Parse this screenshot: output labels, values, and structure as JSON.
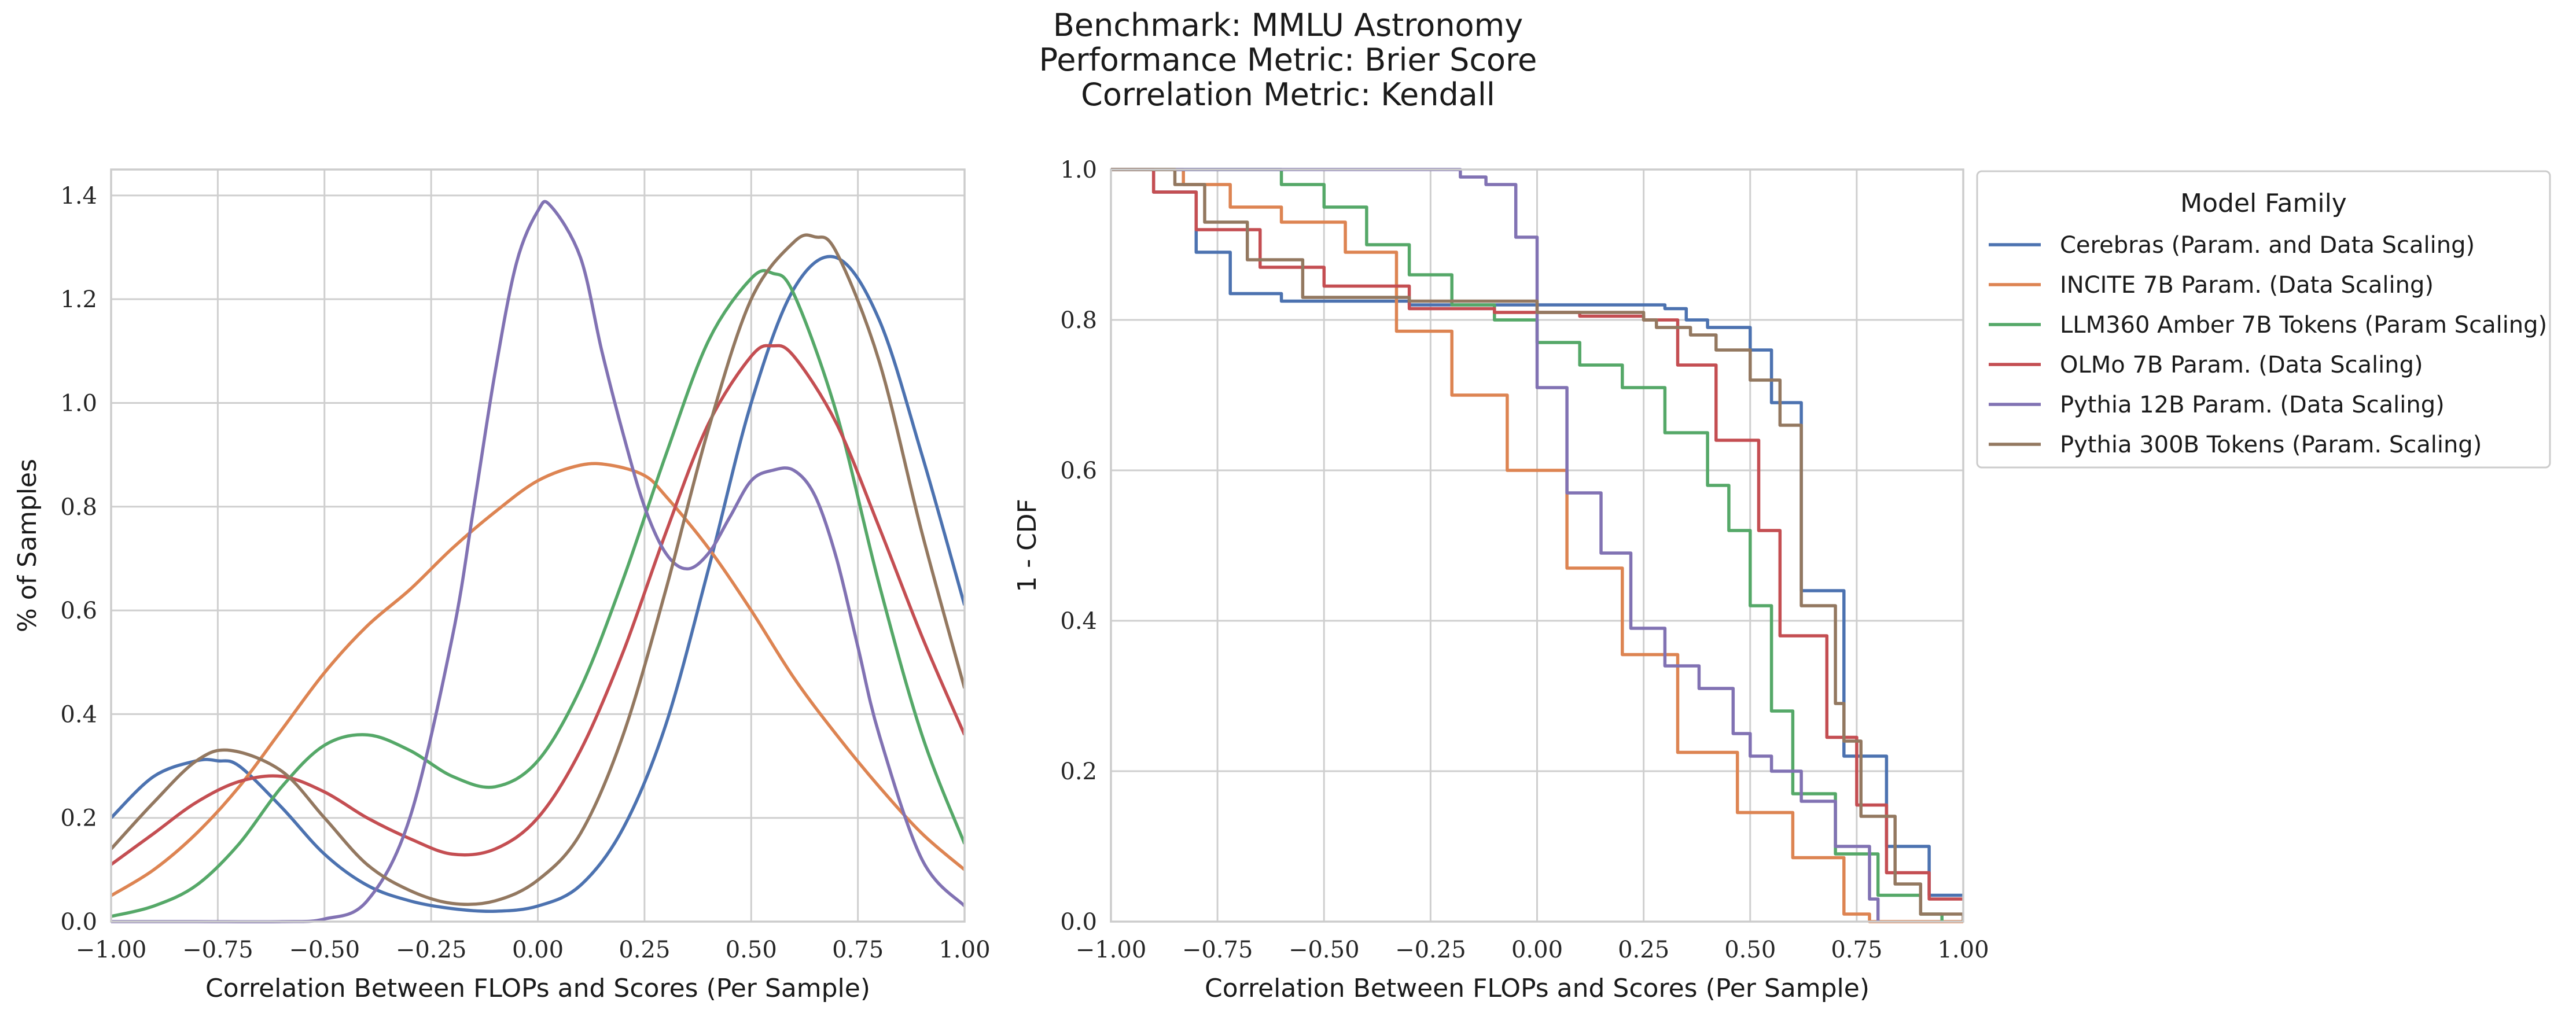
{
  "header": {
    "line1": "Benchmark: MMLU Astronomy",
    "line2": "Performance Metric: Brier Score",
    "line3": "Correlation Metric: Kendall"
  },
  "legend": {
    "title": "Model Family"
  },
  "chart_data": [
    {
      "type": "line",
      "subtype": "kde",
      "xlabel": "Correlation Between FLOPs and Scores (Per Sample)",
      "ylabel": "% of Samples",
      "xlim": [
        -1.0,
        1.0
      ],
      "ylim": [
        0.0,
        1.45
      ],
      "xticks": [
        -1.0,
        -0.75,
        -0.5,
        -0.25,
        0.0,
        0.25,
        0.5,
        0.75,
        1.0
      ],
      "xtick_labels": [
        "−1.00",
        "−0.75",
        "−0.50",
        "−0.25",
        "0.00",
        "0.25",
        "0.50",
        "0.75",
        "1.00"
      ],
      "yticks": [
        0.0,
        0.2,
        0.4,
        0.6,
        0.8,
        1.0,
        1.2,
        1.4
      ],
      "ytick_labels": [
        "0.0",
        "0.2",
        "0.4",
        "0.6",
        "0.8",
        "1.0",
        "1.2",
        "1.4"
      ],
      "grid": true,
      "series": [
        {
          "name": "Cerebras (Param. and Data Scaling)",
          "color": "#4c72b0",
          "x": [
            -1.0,
            -0.9,
            -0.8,
            -0.75,
            -0.7,
            -0.6,
            -0.5,
            -0.4,
            -0.3,
            -0.2,
            -0.1,
            0.0,
            0.1,
            0.2,
            0.3,
            0.4,
            0.5,
            0.6,
            0.7,
            0.8,
            0.9,
            1.0
          ],
          "y": [
            0.2,
            0.28,
            0.31,
            0.31,
            0.3,
            0.22,
            0.13,
            0.07,
            0.04,
            0.025,
            0.02,
            0.03,
            0.07,
            0.18,
            0.38,
            0.68,
            1.0,
            1.22,
            1.28,
            1.16,
            0.9,
            0.61
          ]
        },
        {
          "name": "INCITE 7B Param. (Data Scaling)",
          "color": "#dd8452",
          "x": [
            -1.0,
            -0.9,
            -0.8,
            -0.7,
            -0.6,
            -0.5,
            -0.4,
            -0.3,
            -0.2,
            -0.1,
            0.0,
            0.1,
            0.17,
            0.25,
            0.3,
            0.4,
            0.5,
            0.6,
            0.7,
            0.8,
            0.9,
            1.0
          ],
          "y": [
            0.05,
            0.1,
            0.17,
            0.26,
            0.37,
            0.48,
            0.57,
            0.64,
            0.72,
            0.79,
            0.85,
            0.88,
            0.88,
            0.86,
            0.82,
            0.72,
            0.6,
            0.47,
            0.36,
            0.26,
            0.17,
            0.1
          ]
        },
        {
          "name": "LLM360 Amber 7B Tokens (Param Scaling)",
          "color": "#55a868",
          "x": [
            -1.0,
            -0.9,
            -0.8,
            -0.7,
            -0.6,
            -0.5,
            -0.4,
            -0.3,
            -0.2,
            -0.1,
            0.0,
            0.1,
            0.2,
            0.3,
            0.4,
            0.5,
            0.55,
            0.6,
            0.7,
            0.8,
            0.9,
            1.0
          ],
          "y": [
            0.01,
            0.03,
            0.07,
            0.15,
            0.26,
            0.34,
            0.36,
            0.33,
            0.28,
            0.26,
            0.31,
            0.45,
            0.66,
            0.9,
            1.12,
            1.24,
            1.25,
            1.21,
            0.98,
            0.65,
            0.36,
            0.15
          ]
        },
        {
          "name": "OLMo 7B Param. (Data Scaling)",
          "color": "#c44e52",
          "x": [
            -1.0,
            -0.9,
            -0.8,
            -0.7,
            -0.6,
            -0.5,
            -0.4,
            -0.3,
            -0.2,
            -0.1,
            0.0,
            0.1,
            0.2,
            0.3,
            0.4,
            0.5,
            0.55,
            0.6,
            0.7,
            0.8,
            0.9,
            1.0
          ],
          "y": [
            0.11,
            0.17,
            0.23,
            0.27,
            0.28,
            0.25,
            0.2,
            0.16,
            0.13,
            0.14,
            0.2,
            0.33,
            0.52,
            0.75,
            0.96,
            1.09,
            1.11,
            1.09,
            0.96,
            0.76,
            0.55,
            0.36
          ]
        },
        {
          "name": "Pythia 12B Param. (Data Scaling)",
          "color": "#8172b3",
          "x": [
            -1.0,
            -0.8,
            -0.6,
            -0.5,
            -0.4,
            -0.3,
            -0.2,
            -0.15,
            -0.1,
            -0.05,
            0.0,
            0.03,
            0.1,
            0.15,
            0.2,
            0.25,
            0.3,
            0.35,
            0.4,
            0.45,
            0.5,
            0.55,
            0.6,
            0.65,
            0.7,
            0.75,
            0.8,
            0.9,
            1.0
          ],
          "y": [
            0.0,
            0.0,
            0.0,
            0.005,
            0.04,
            0.2,
            0.55,
            0.8,
            1.06,
            1.27,
            1.37,
            1.38,
            1.28,
            1.1,
            0.94,
            0.8,
            0.71,
            0.68,
            0.71,
            0.78,
            0.85,
            0.87,
            0.87,
            0.82,
            0.7,
            0.53,
            0.36,
            0.12,
            0.03
          ]
        },
        {
          "name": "Pythia 300B Tokens (Param. Scaling)",
          "color": "#937860",
          "x": [
            -1.0,
            -0.9,
            -0.8,
            -0.72,
            -0.6,
            -0.5,
            -0.4,
            -0.3,
            -0.2,
            -0.1,
            0.0,
            0.1,
            0.2,
            0.3,
            0.4,
            0.5,
            0.6,
            0.65,
            0.7,
            0.8,
            0.9,
            1.0
          ],
          "y": [
            0.14,
            0.23,
            0.31,
            0.33,
            0.29,
            0.2,
            0.11,
            0.06,
            0.035,
            0.04,
            0.08,
            0.17,
            0.36,
            0.64,
            0.95,
            1.2,
            1.31,
            1.32,
            1.29,
            1.08,
            0.75,
            0.45
          ]
        }
      ]
    },
    {
      "type": "line",
      "subtype": "step-survival",
      "xlabel": "Correlation Between FLOPs and Scores (Per Sample)",
      "ylabel": "1 - CDF",
      "xlim": [
        -1.0,
        1.0
      ],
      "ylim": [
        0.0,
        1.0
      ],
      "xticks": [
        -1.0,
        -0.75,
        -0.5,
        -0.25,
        0.0,
        0.25,
        0.5,
        0.75,
        1.0
      ],
      "xtick_labels": [
        "−1.00",
        "−0.75",
        "−0.50",
        "−0.25",
        "0.00",
        "0.25",
        "0.50",
        "0.75",
        "1.00"
      ],
      "yticks": [
        0.0,
        0.2,
        0.4,
        0.6,
        0.8,
        1.0
      ],
      "ytick_labels": [
        "0.0",
        "0.2",
        "0.4",
        "0.6",
        "0.8",
        "1.0"
      ],
      "grid": true,
      "legend_position": "outside-right-top",
      "series": [
        {
          "name": "Cerebras (Param. and Data Scaling)",
          "color": "#4c72b0",
          "x": [
            -1.0,
            -0.9,
            -0.8,
            -0.72,
            -0.6,
            -0.3,
            0.0,
            0.3,
            0.35,
            0.4,
            0.5,
            0.55,
            0.62,
            0.72,
            0.82,
            0.92,
            1.0
          ],
          "y": [
            1.0,
            0.97,
            0.89,
            0.835,
            0.825,
            0.82,
            0.82,
            0.815,
            0.8,
            0.79,
            0.76,
            0.69,
            0.44,
            0.22,
            0.1,
            0.035,
            0.035
          ]
        },
        {
          "name": "INCITE 7B Param. (Data Scaling)",
          "color": "#dd8452",
          "x": [
            -1.0,
            -0.83,
            -0.72,
            -0.6,
            -0.45,
            -0.33,
            -0.2,
            -0.07,
            0.07,
            0.2,
            0.33,
            0.47,
            0.6,
            0.72,
            0.78,
            1.0
          ],
          "y": [
            1.0,
            0.98,
            0.95,
            0.93,
            0.89,
            0.785,
            0.7,
            0.6,
            0.47,
            0.355,
            0.225,
            0.145,
            0.085,
            0.01,
            0.0,
            0.0
          ]
        },
        {
          "name": "LLM360 Amber 7B Tokens (Param Scaling)",
          "color": "#55a868",
          "x": [
            -1.0,
            -0.7,
            -0.6,
            -0.5,
            -0.4,
            -0.3,
            -0.2,
            -0.1,
            0.0,
            0.1,
            0.2,
            0.3,
            0.4,
            0.45,
            0.5,
            0.55,
            0.6,
            0.7,
            0.8,
            0.9,
            0.95
          ],
          "y": [
            1.0,
            1.0,
            0.98,
            0.95,
            0.9,
            0.86,
            0.82,
            0.8,
            0.77,
            0.74,
            0.71,
            0.65,
            0.58,
            0.52,
            0.42,
            0.28,
            0.17,
            0.09,
            0.035,
            0.01,
            0.0
          ]
        },
        {
          "name": "OLMo 7B Param. (Data Scaling)",
          "color": "#c44e52",
          "x": [
            -1.0,
            -0.9,
            -0.8,
            -0.65,
            -0.5,
            -0.3,
            -0.1,
            0.1,
            0.25,
            0.33,
            0.42,
            0.52,
            0.57,
            0.68,
            0.75,
            0.82,
            0.92,
            1.0
          ],
          "y": [
            1.0,
            0.97,
            0.92,
            0.87,
            0.845,
            0.815,
            0.81,
            0.805,
            0.8,
            0.74,
            0.64,
            0.52,
            0.38,
            0.245,
            0.155,
            0.065,
            0.03,
            0.03
          ]
        },
        {
          "name": "Pythia 12B Param. (Data Scaling)",
          "color": "#8172b3",
          "x": [
            -1.0,
            -0.28,
            -0.18,
            -0.12,
            -0.05,
            0.0,
            0.07,
            0.15,
            0.22,
            0.3,
            0.38,
            0.46,
            0.5,
            0.55,
            0.62,
            0.7,
            0.78,
            0.8
          ],
          "y": [
            1.0,
            1.0,
            0.99,
            0.98,
            0.91,
            0.71,
            0.57,
            0.49,
            0.39,
            0.34,
            0.31,
            0.25,
            0.22,
            0.2,
            0.16,
            0.1,
            0.03,
            0.0
          ]
        },
        {
          "name": "Pythia 300B Tokens (Param. Scaling)",
          "color": "#937860",
          "x": [
            -1.0,
            -0.85,
            -0.78,
            -0.68,
            -0.55,
            -0.3,
            0.0,
            0.25,
            0.28,
            0.36,
            0.42,
            0.5,
            0.57,
            0.62,
            0.7,
            0.72,
            0.76,
            0.84,
            0.9,
            1.0
          ],
          "y": [
            1.0,
            0.98,
            0.93,
            0.88,
            0.83,
            0.825,
            0.81,
            0.8,
            0.79,
            0.78,
            0.76,
            0.72,
            0.66,
            0.42,
            0.29,
            0.24,
            0.14,
            0.05,
            0.01,
            0.0
          ]
        }
      ]
    }
  ]
}
